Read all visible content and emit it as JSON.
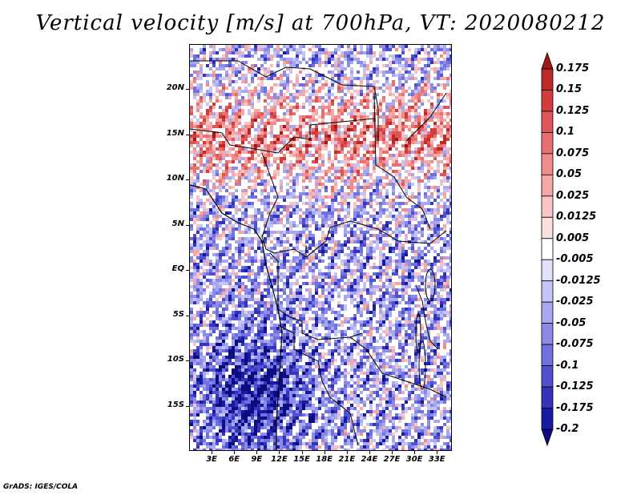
{
  "title": "Vertical velocity [m/s] at 700hPa, VT: 2020080212",
  "credit": "GrADS: IGES/COLA",
  "map": {
    "variable": "Vertical velocity",
    "units": "m/s",
    "level": "700hPa",
    "valid_time": "2020080212",
    "lon_range": [
      0,
      35
    ],
    "lat_range": [
      -20,
      25
    ],
    "lat_labels": [
      "20N",
      "15N",
      "10N",
      "5N",
      "EQ",
      "5S",
      "10S",
      "15S"
    ],
    "lat_values": [
      20,
      15,
      10,
      5,
      0,
      -5,
      -10,
      -15
    ],
    "lon_labels": [
      "3E",
      "6E",
      "9E",
      "12E",
      "15E",
      "18E",
      "21E",
      "24E",
      "27E",
      "30E",
      "33E"
    ],
    "lon_values": [
      3,
      6,
      9,
      12,
      15,
      18,
      21,
      24,
      27,
      30,
      33
    ]
  },
  "colorbar": {
    "labels": [
      "0.175",
      "0.15",
      "0.125",
      "0.1",
      "0.075",
      "0.05",
      "0.025",
      "0.0125",
      "0.005",
      "-0.005",
      "-0.0125",
      "-0.025",
      "-0.05",
      "-0.075",
      "-0.1",
      "-0.125",
      "-0.175",
      "-0.2"
    ],
    "colors": [
      "#a01818",
      "#be2828",
      "#d23c3c",
      "#e05555",
      "#e87070",
      "#f08c8c",
      "#f5a8a8",
      "#f8c4c4",
      "#fbe0e0",
      "#ffffff",
      "#e0e0fb",
      "#c4c4f6",
      "#a8a8f0",
      "#8c8ce8",
      "#7070e0",
      "#5050d0",
      "#3333bb",
      "#1a1aa0",
      "#0d0d80"
    ]
  }
}
